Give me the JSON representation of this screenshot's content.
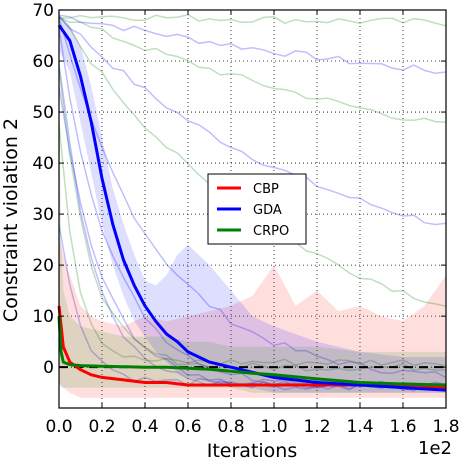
{
  "chart_data": {
    "type": "line",
    "xlabel": "Iterations",
    "ylabel": "Constraint violation 2",
    "x_multiplier_label": "1e2",
    "xlim": [
      0,
      1.8
    ],
    "ylim": [
      -8,
      70
    ],
    "x_ticks": [
      "0.0",
      "0.2",
      "0.4",
      "0.6",
      "0.8",
      "1.0",
      "1.2",
      "1.4",
      "1.6",
      "1.8"
    ],
    "y_ticks": [
      "0",
      "10",
      "20",
      "30",
      "40",
      "50",
      "60",
      "70"
    ],
    "x_tick_values": [
      0.0,
      0.2,
      0.4,
      0.6,
      0.8,
      1.0,
      1.2,
      1.4,
      1.6,
      1.8
    ],
    "y_tick_values": [
      0,
      10,
      20,
      30,
      40,
      50,
      60,
      70
    ],
    "grid": true,
    "reference_line": 0,
    "legend_placement": "center-right",
    "series": [
      {
        "name": "CBP",
        "color": "#ff0000",
        "x": [
          0.0,
          0.02,
          0.05,
          0.1,
          0.15,
          0.2,
          0.3,
          0.4,
          0.5,
          0.6,
          0.7,
          0.8,
          0.9,
          1.0,
          1.1,
          1.2,
          1.3,
          1.4,
          1.5,
          1.6,
          1.7,
          1.8
        ],
        "y": [
          12,
          4,
          1,
          -0.5,
          -1.5,
          -2,
          -2.5,
          -3,
          -3,
          -3.5,
          -3.5,
          -3.5,
          -3.5,
          -3.5,
          -3.5,
          -3.5,
          -3.5,
          -3.5,
          -3.5,
          -3.5,
          -3.8,
          -4
        ],
        "band_upper": [
          26,
          22,
          18,
          12,
          10,
          9,
          8,
          10,
          9,
          10,
          11,
          12,
          14,
          20,
          12,
          15,
          11,
          12,
          10,
          9,
          12,
          18
        ],
        "band_lower": [
          -3,
          -4,
          -5,
          -6,
          -6,
          -6,
          -6,
          -6,
          -6,
          -6,
          -6,
          -6,
          -6,
          -6,
          -6,
          -6,
          -6,
          -6,
          -6,
          -6,
          -6,
          -6
        ]
      },
      {
        "name": "GDA",
        "color": "#0000ff",
        "x": [
          0.0,
          0.05,
          0.1,
          0.15,
          0.2,
          0.25,
          0.3,
          0.35,
          0.4,
          0.45,
          0.5,
          0.55,
          0.6,
          0.7,
          0.8,
          0.9,
          1.0,
          1.2,
          1.4,
          1.6,
          1.8
        ],
        "y": [
          67,
          64,
          57,
          48,
          37,
          28,
          21,
          16,
          12,
          9,
          6.5,
          5,
          3,
          1,
          0,
          -1,
          -2,
          -3,
          -3.5,
          -4,
          -4.5
        ],
        "band_upper": [
          69,
          67,
          63,
          55,
          45,
          35,
          28,
          22,
          17,
          16,
          18,
          22,
          24,
          20,
          15,
          10,
          8,
          5,
          3,
          2,
          2
        ],
        "band_lower": [
          62,
          58,
          48,
          38,
          28,
          20,
          14,
          9,
          6,
          3,
          1,
          -1,
          -2,
          -3,
          -4,
          -4,
          -5,
          -5,
          -5,
          -5,
          -5
        ]
      },
      {
        "name": "CRPO",
        "color": "#008000",
        "x": [
          0.0,
          0.01,
          0.02,
          0.05,
          0.1,
          0.2,
          0.3,
          0.4,
          0.5,
          0.6,
          0.7,
          0.8,
          0.9,
          1.0,
          1.2,
          1.4,
          1.6,
          1.8
        ],
        "y": [
          10,
          3,
          1,
          0.5,
          0.3,
          0.2,
          0.1,
          0,
          0,
          -0.2,
          -0.4,
          -0.8,
          -1.2,
          -1.5,
          -2.3,
          -3,
          -3.3,
          -3.5
        ],
        "band_upper": [
          60,
          25,
          15,
          10,
          8,
          7,
          6,
          6,
          6,
          5,
          5,
          4,
          4,
          4,
          4,
          3,
          3,
          3
        ],
        "band_lower": [
          -3,
          -4,
          -4,
          -4,
          -4,
          -4,
          -4,
          -4,
          -4,
          -4,
          -4,
          -4,
          -5,
          -5,
          -5,
          -5,
          -5,
          -5
        ]
      }
    ]
  }
}
